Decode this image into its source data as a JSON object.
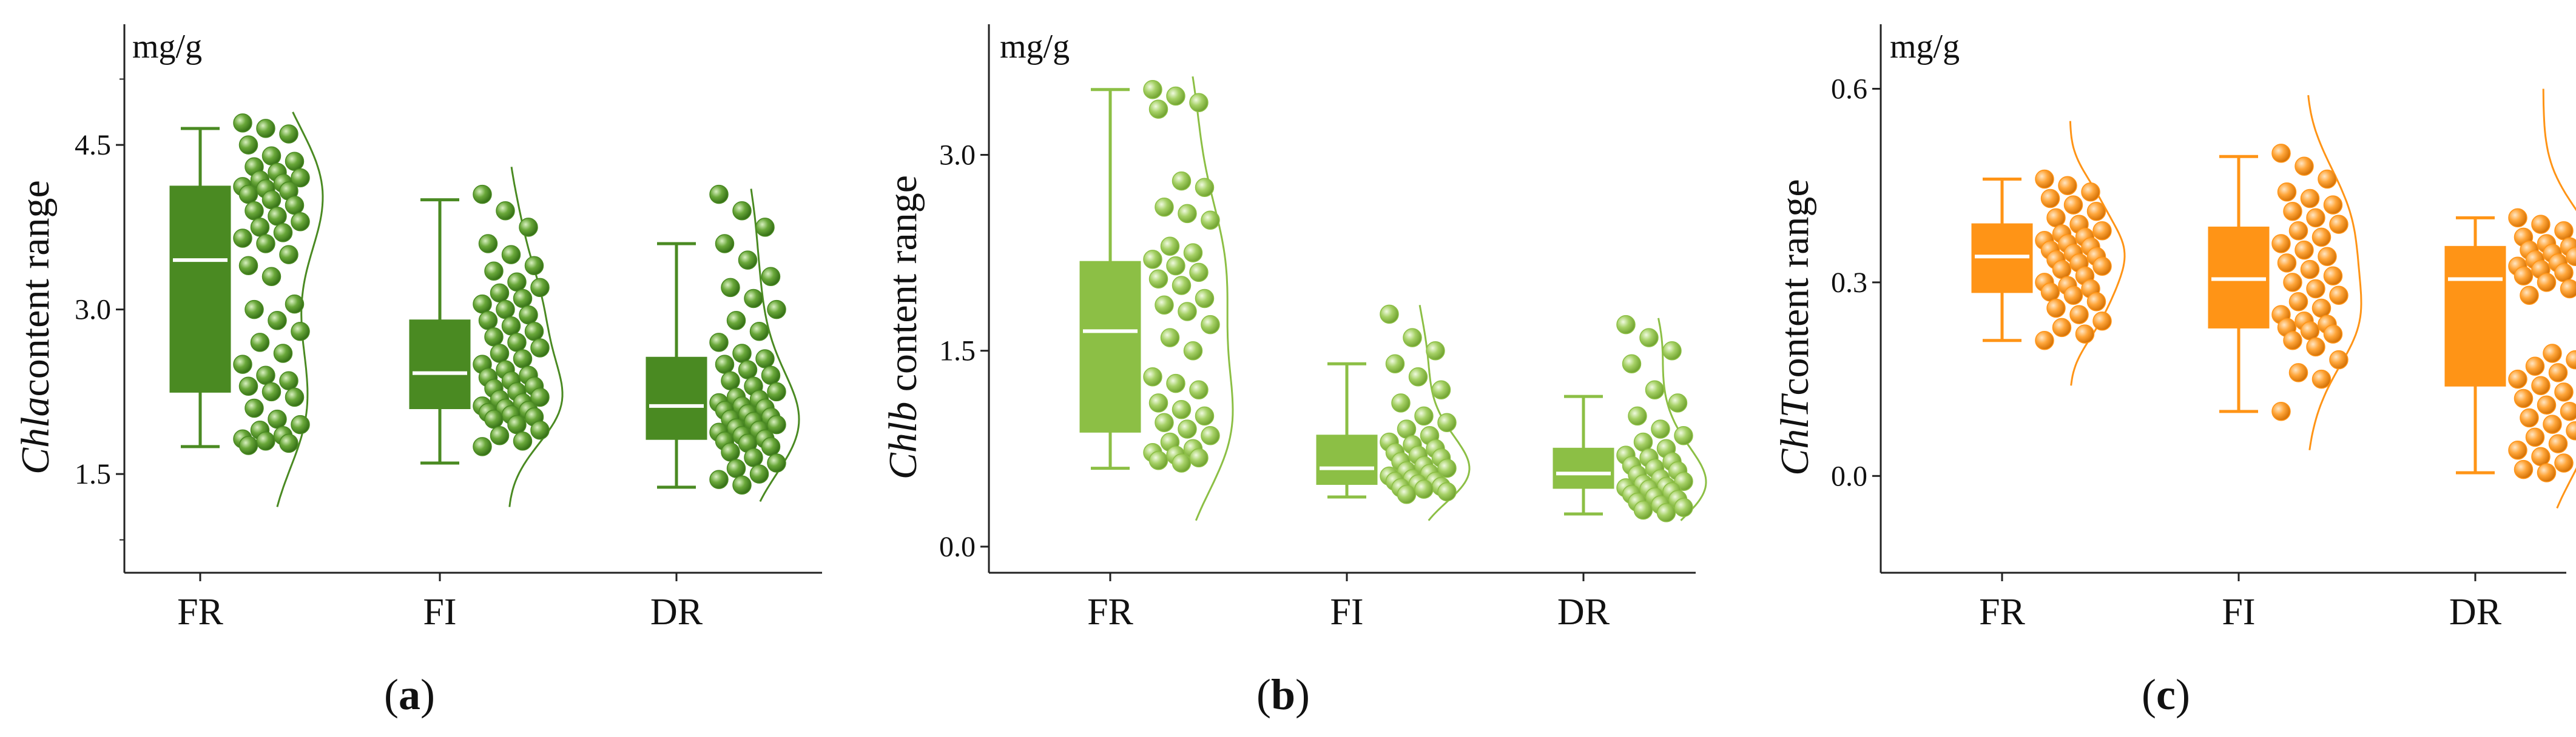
{
  "chart_data": [
    {
      "type": "box-raincloud",
      "panel_label": "a",
      "unit": "mg/g",
      "ylabel_italic": "Chla",
      "ylabel_rest": "content range",
      "ylim": [
        0.6,
        5.6
      ],
      "yticks": [
        1.5,
        3.0,
        4.5
      ],
      "ytick_labels": [
        "1.5",
        "3.0",
        "4.5"
      ],
      "minor_ticks": [
        0.9,
        5.1
      ],
      "color": "#4a8a22",
      "categories": [
        "FR",
        "FI",
        "DR"
      ],
      "boxes": [
        {
          "category": "FR",
          "min": 1.75,
          "q1": 2.25,
          "median": 3.45,
          "q3": 4.12,
          "max": 4.65
        },
        {
          "category": "FI",
          "min": 1.6,
          "q1": 2.1,
          "median": 2.42,
          "q3": 2.9,
          "max": 4.0
        },
        {
          "category": "DR",
          "min": 1.38,
          "q1": 1.82,
          "median": 2.12,
          "q3": 2.56,
          "max": 3.6
        }
      ],
      "points": [
        [
          4.7,
          4.65,
          4.6,
          4.5,
          4.4,
          4.35,
          4.3,
          4.25,
          4.2,
          4.18,
          4.15,
          4.12,
          4.1,
          4.08,
          4.05,
          4.0,
          3.95,
          3.9,
          3.85,
          3.8,
          3.75,
          3.7,
          3.65,
          3.6,
          3.5,
          3.4,
          3.3,
          3.05,
          3.0,
          2.9,
          2.8,
          2.7,
          2.6,
          2.5,
          2.4,
          2.35,
          2.3,
          2.25,
          2.2,
          2.1,
          2.0,
          1.95,
          1.9,
          1.85,
          1.82,
          1.8,
          1.78,
          1.76
        ],
        [
          4.05,
          3.9,
          3.75,
          3.6,
          3.5,
          3.4,
          3.35,
          3.25,
          3.2,
          3.15,
          3.1,
          3.05,
          3.0,
          2.95,
          2.9,
          2.85,
          2.8,
          2.75,
          2.7,
          2.65,
          2.6,
          2.55,
          2.5,
          2.45,
          2.4,
          2.38,
          2.35,
          2.3,
          2.28,
          2.25,
          2.2,
          2.18,
          2.15,
          2.12,
          2.1,
          2.08,
          2.06,
          2.04,
          2.02,
          2.0,
          1.95,
          1.9,
          1.85,
          1.8,
          1.75
        ],
        [
          4.05,
          3.9,
          3.75,
          3.6,
          3.45,
          3.3,
          3.2,
          3.1,
          3.0,
          2.9,
          2.8,
          2.7,
          2.6,
          2.55,
          2.5,
          2.45,
          2.4,
          2.35,
          2.3,
          2.25,
          2.2,
          2.18,
          2.15,
          2.12,
          2.1,
          2.08,
          2.05,
          2.02,
          2.0,
          1.98,
          1.95,
          1.92,
          1.9,
          1.88,
          1.85,
          1.82,
          1.8,
          1.78,
          1.75,
          1.7,
          1.65,
          1.6,
          1.55,
          1.5,
          1.45,
          1.4
        ]
      ],
      "density_range": [
        [
          1.2,
          4.8
        ],
        [
          1.2,
          4.3
        ],
        [
          1.25,
          4.1
        ]
      ]
    },
    {
      "type": "box-raincloud",
      "panel_label": "b",
      "unit": "mg/g",
      "ylabel_italic": "Chlb",
      "ylabel_rest": " content range",
      "ylim": [
        -0.2,
        4.0
      ],
      "yticks": [
        0.0,
        1.5,
        3.0
      ],
      "ytick_labels": [
        "0.0",
        "1.5",
        "3.0"
      ],
      "minor_ticks": [],
      "color": "#8cbf45",
      "categories": [
        "FR",
        "FI",
        "DR"
      ],
      "boxes": [
        {
          "category": "FR",
          "min": 0.6,
          "q1": 0.88,
          "median": 1.65,
          "q3": 2.18,
          "max": 3.5
        },
        {
          "category": "FI",
          "min": 0.38,
          "q1": 0.48,
          "median": 0.6,
          "q3": 0.85,
          "max": 1.4
        },
        {
          "category": "DR",
          "min": 0.25,
          "q1": 0.45,
          "median": 0.56,
          "q3": 0.75,
          "max": 1.15
        }
      ],
      "points": [
        [
          3.5,
          3.45,
          3.4,
          3.35,
          2.8,
          2.75,
          2.6,
          2.55,
          2.5,
          2.3,
          2.25,
          2.2,
          2.15,
          2.1,
          2.05,
          2.0,
          1.9,
          1.85,
          1.8,
          1.7,
          1.6,
          1.5,
          1.3,
          1.25,
          1.2,
          1.1,
          1.05,
          1.0,
          0.95,
          0.9,
          0.85,
          0.8,
          0.75,
          0.72,
          0.7,
          0.68,
          0.66,
          0.64
        ],
        [
          1.78,
          1.6,
          1.5,
          1.4,
          1.3,
          1.2,
          1.1,
          1.0,
          0.95,
          0.9,
          0.85,
          0.8,
          0.78,
          0.75,
          0.72,
          0.7,
          0.68,
          0.65,
          0.62,
          0.6,
          0.58,
          0.56,
          0.54,
          0.52,
          0.5,
          0.5,
          0.48,
          0.46,
          0.45,
          0.44,
          0.42,
          0.4
        ],
        [
          1.7,
          1.6,
          1.5,
          1.4,
          1.2,
          1.1,
          1.0,
          0.9,
          0.85,
          0.8,
          0.75,
          0.7,
          0.68,
          0.65,
          0.62,
          0.6,
          0.58,
          0.55,
          0.52,
          0.5,
          0.48,
          0.46,
          0.45,
          0.44,
          0.42,
          0.4,
          0.38,
          0.36,
          0.34,
          0.32,
          0.3,
          0.28,
          0.26
        ]
      ],
      "density_range": [
        [
          0.2,
          3.6
        ],
        [
          0.2,
          1.85
        ],
        [
          0.2,
          1.75
        ]
      ]
    },
    {
      "type": "box-raincloud",
      "panel_label": "c",
      "unit": "mg/g",
      "ylabel_italic": "ChlT",
      "ylabel_rest": "content range",
      "ylim": [
        -0.15,
        0.7
      ],
      "yticks": [
        0.0,
        0.3,
        0.6
      ],
      "ytick_labels": [
        "0.0",
        "0.3",
        "0.6"
      ],
      "minor_ticks": [],
      "color": "#ff9416",
      "categories": [
        "FR",
        "FI",
        "DR"
      ],
      "boxes": [
        {
          "category": "FR",
          "min": 0.21,
          "q1": 0.285,
          "median": 0.34,
          "q3": 0.39,
          "max": 0.46
        },
        {
          "category": "FI",
          "min": 0.1,
          "q1": 0.23,
          "median": 0.305,
          "q3": 0.385,
          "max": 0.495
        },
        {
          "category": "DR",
          "min": 0.005,
          "q1": 0.14,
          "median": 0.305,
          "q3": 0.355,
          "max": 0.4
        }
      ],
      "points": [
        [
          0.46,
          0.45,
          0.44,
          0.43,
          0.42,
          0.41,
          0.4,
          0.39,
          0.38,
          0.375,
          0.37,
          0.365,
          0.36,
          0.355,
          0.35,
          0.345,
          0.34,
          0.335,
          0.33,
          0.325,
          0.32,
          0.31,
          0.3,
          0.295,
          0.29,
          0.285,
          0.28,
          0.27,
          0.26,
          0.25,
          0.24,
          0.23,
          0.22,
          0.21
        ],
        [
          0.5,
          0.48,
          0.46,
          0.44,
          0.43,
          0.42,
          0.41,
          0.4,
          0.39,
          0.38,
          0.37,
          0.36,
          0.35,
          0.34,
          0.33,
          0.32,
          0.31,
          0.3,
          0.29,
          0.28,
          0.27,
          0.26,
          0.25,
          0.24,
          0.235,
          0.23,
          0.225,
          0.22,
          0.21,
          0.2,
          0.18,
          0.16,
          0.15,
          0.1
        ],
        [
          0.4,
          0.39,
          0.38,
          0.37,
          0.36,
          0.355,
          0.35,
          0.345,
          0.34,
          0.335,
          0.33,
          0.325,
          0.32,
          0.315,
          0.31,
          0.3,
          0.29,
          0.28,
          0.19,
          0.18,
          0.17,
          0.16,
          0.15,
          0.14,
          0.13,
          0.12,
          0.11,
          0.1,
          0.09,
          0.08,
          0.07,
          0.06,
          0.05,
          0.04,
          0.03,
          0.02,
          0.01,
          0.005
        ]
      ],
      "density_range": [
        [
          0.14,
          0.55
        ],
        [
          0.04,
          0.59
        ],
        [
          -0.05,
          0.6
        ]
      ]
    }
  ]
}
